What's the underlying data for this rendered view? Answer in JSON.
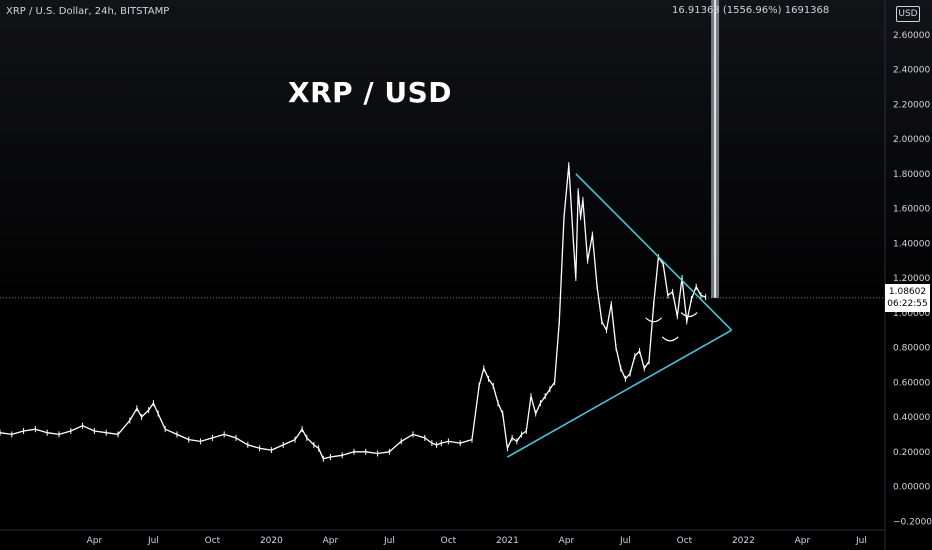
{
  "header": {
    "symbol": "XRP / U.S. Dollar, 24h, BITSTAMP",
    "measure": "16.91368 (1556.96%) 1691368",
    "currency": "USD"
  },
  "chart_title": "XRP / USD",
  "price_tag": {
    "price": "1.08602",
    "countdown": "06:22:55"
  },
  "chart_data": {
    "type": "line",
    "title": "XRP / USD",
    "xlabel": "",
    "ylabel": "",
    "ylim": [
      -0.25,
      2.8
    ],
    "xlim": [
      2018.85,
      2022.6
    ],
    "y_ticks": [
      -0.2,
      0,
      0.2,
      0.4,
      0.6,
      0.8,
      1.0,
      1.2,
      1.4,
      1.6,
      1.8,
      2.0,
      2.2,
      2.4,
      2.6
    ],
    "y_tick_labels": [
      "−0.20000",
      "0.00000",
      "0.20000",
      "0.40000",
      "0.60000",
      "0.80000",
      "1.00000",
      "1.20000",
      "1.40000",
      "1.60000",
      "1.80000",
      "2.00000",
      "2.20000",
      "2.40000",
      "2.60000"
    ],
    "x_ticks": [
      2019.25,
      2019.5,
      2019.75,
      2020.0,
      2020.25,
      2020.5,
      2020.75,
      2021.0,
      2021.25,
      2021.5,
      2021.75,
      2022.0,
      2022.25,
      2022.5
    ],
    "x_tick_labels": [
      "Apr",
      "Jul",
      "Oct",
      "2020",
      "Apr",
      "Jul",
      "Oct",
      "2021",
      "Apr",
      "Jul",
      "Oct",
      "2022",
      "Apr",
      "Jul"
    ],
    "grid": false,
    "current_price": 1.086,
    "series": [
      {
        "x": [
          2018.85,
          2018.9,
          2018.95,
          2019.0,
          2019.05,
          2019.1,
          2019.15,
          2019.2,
          2019.25,
          2019.3,
          2019.35,
          2019.4,
          2019.43,
          2019.45,
          2019.48,
          2019.5,
          2019.52,
          2019.55,
          2019.6,
          2019.65,
          2019.7,
          2019.75,
          2019.8,
          2019.85,
          2019.9,
          2019.95,
          2020.0,
          2020.05,
          2020.1,
          2020.13,
          2020.15,
          2020.18,
          2020.2,
          2020.22,
          2020.25,
          2020.3,
          2020.35,
          2020.4,
          2020.45,
          2020.5,
          2020.55,
          2020.6,
          2020.65,
          2020.68,
          2020.7,
          2020.72,
          2020.75,
          2020.8,
          2020.85,
          2020.88,
          2020.9,
          2020.92,
          2020.94,
          2020.96,
          2020.98,
          2021.0,
          2021.02,
          2021.04,
          2021.06,
          2021.08,
          2021.1,
          2021.12,
          2021.14,
          2021.16,
          2021.18,
          2021.2,
          2021.22,
          2021.24,
          2021.26,
          2021.28,
          2021.29,
          2021.3,
          2021.31,
          2021.32,
          2021.34,
          2021.36,
          2021.38,
          2021.4,
          2021.42,
          2021.44,
          2021.46,
          2021.48,
          2021.5,
          2021.52,
          2021.54,
          2021.56,
          2021.58,
          2021.6,
          2021.62,
          2021.64,
          2021.66,
          2021.68,
          2021.7,
          2021.72,
          2021.74,
          2021.76,
          2021.78,
          2021.8,
          2021.82,
          2021.84
        ],
        "y": [
          0.31,
          0.3,
          0.32,
          0.33,
          0.31,
          0.3,
          0.32,
          0.35,
          0.32,
          0.31,
          0.3,
          0.38,
          0.45,
          0.4,
          0.44,
          0.48,
          0.42,
          0.33,
          0.3,
          0.27,
          0.26,
          0.28,
          0.3,
          0.28,
          0.24,
          0.22,
          0.21,
          0.24,
          0.27,
          0.33,
          0.28,
          0.24,
          0.22,
          0.16,
          0.17,
          0.18,
          0.2,
          0.2,
          0.19,
          0.2,
          0.26,
          0.3,
          0.28,
          0.25,
          0.24,
          0.25,
          0.26,
          0.25,
          0.27,
          0.58,
          0.68,
          0.62,
          0.58,
          0.48,
          0.42,
          0.22,
          0.28,
          0.26,
          0.3,
          0.32,
          0.52,
          0.42,
          0.48,
          0.52,
          0.56,
          0.6,
          0.95,
          1.55,
          1.85,
          1.4,
          1.2,
          1.7,
          1.55,
          1.65,
          1.3,
          1.45,
          1.15,
          0.95,
          0.9,
          1.05,
          0.8,
          0.68,
          0.62,
          0.65,
          0.75,
          0.78,
          0.68,
          0.72,
          1.05,
          1.32,
          1.28,
          1.1,
          1.12,
          0.98,
          1.2,
          0.95,
          1.08,
          1.15,
          1.1,
          1.09
        ]
      }
    ],
    "trendlines": [
      {
        "name": "upper",
        "x": [
          2021.29,
          2021.95
        ],
        "y": [
          1.8,
          0.9
        ]
      },
      {
        "name": "lower",
        "x": [
          2021.0,
          2021.95
        ],
        "y": [
          0.17,
          0.9
        ]
      }
    ],
    "annotations": [
      {
        "type": "arc",
        "x": 2021.62,
        "y": 0.96
      },
      {
        "type": "arc",
        "x": 2021.69,
        "y": 0.85
      },
      {
        "type": "arc",
        "x": 2021.77,
        "y": 0.99
      }
    ],
    "measure_bar": {
      "x": 2021.88,
      "y_from": 1.086,
      "y_to": 2.8
    }
  }
}
